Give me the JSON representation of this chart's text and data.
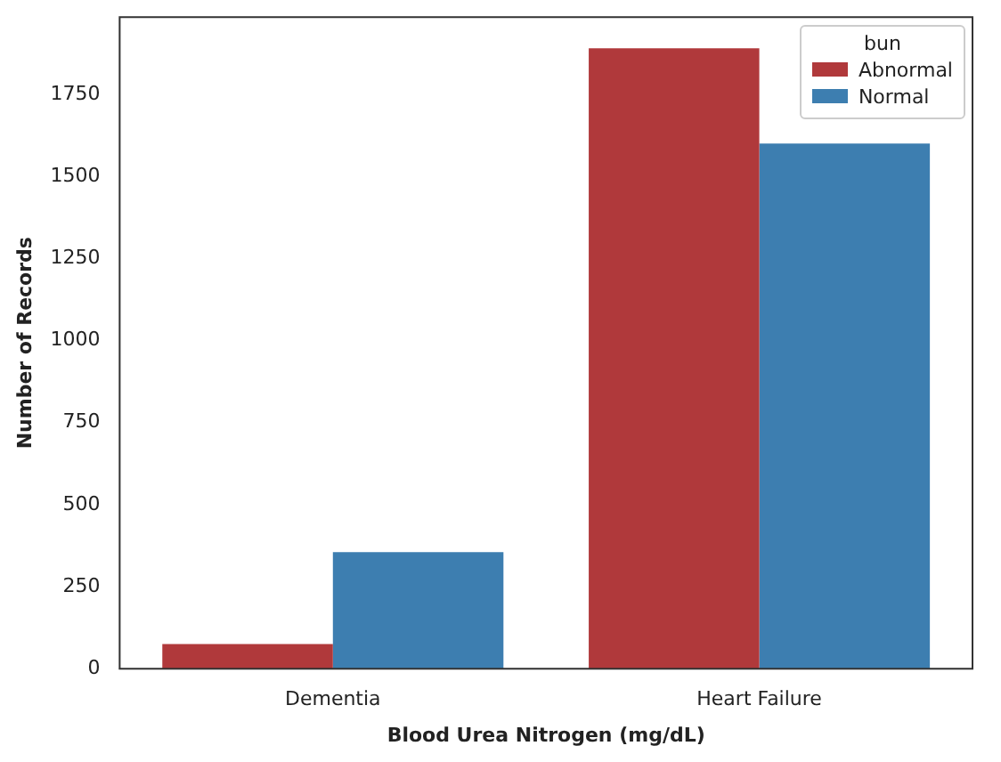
{
  "chart_data": {
    "type": "bar",
    "xlabel": "Blood Urea Nitrogen (mg/dL)",
    "ylabel": "Number of Records",
    "legend_title": "bun",
    "categories": [
      "Dementia",
      "Heart Failure"
    ],
    "series": [
      {
        "name": "Abnormal",
        "color": "#b0393b",
        "values": [
          75,
          1890
        ]
      },
      {
        "name": "Normal",
        "color": "#3d7eb0",
        "values": [
          355,
          1600
        ]
      }
    ],
    "ylim": [
      0,
      1985
    ],
    "yticks": [
      0,
      250,
      500,
      750,
      1000,
      1250,
      1500,
      1750
    ],
    "grid": false,
    "legend": "top right"
  }
}
